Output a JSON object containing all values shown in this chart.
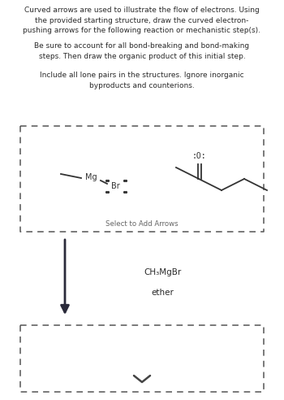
{
  "background_color": "#ffffff",
  "text_color": "#2a2a2a",
  "dashed_color": "#555555",
  "arrow_color": "#2a2a3a",
  "chevron_color": "#444444",
  "mol_color": "#333333",
  "label_color": "#555555",
  "box1_label": "Select to Add Arrows",
  "reagent_line1": "CH₃MgBr",
  "reagent_line2": "ether",
  "fig_width": 3.5,
  "fig_height": 4.92,
  "dpi": 100
}
